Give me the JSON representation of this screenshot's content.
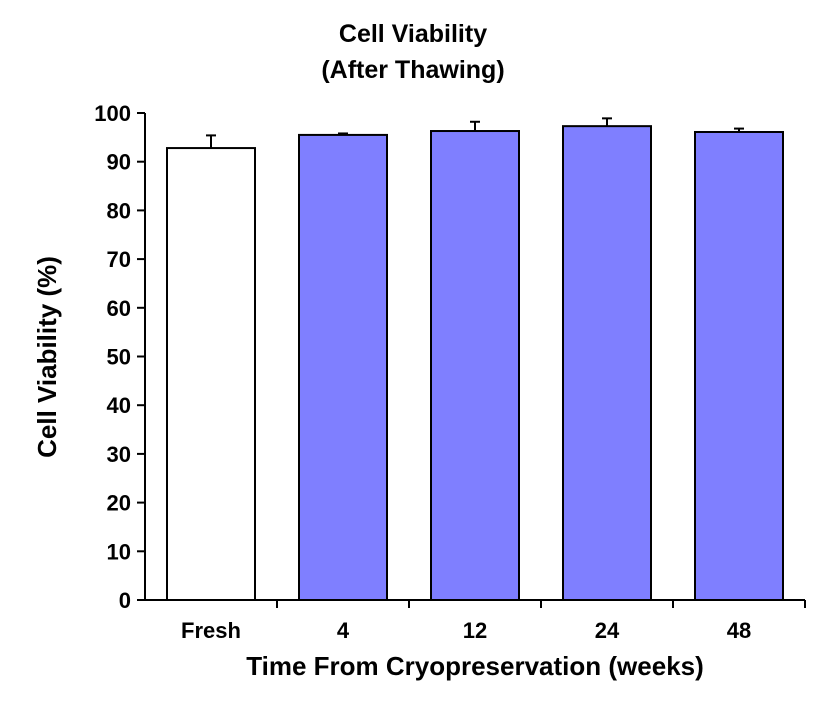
{
  "chart_data": {
    "type": "bar",
    "title_line1": "Cell Viability",
    "title_line2": "(After Thawing)",
    "xlabel": "Time From Cryopreservation (weeks)",
    "ylabel": "Cell Viability (%)",
    "categories": [
      "Fresh",
      "4",
      "12",
      "24",
      "48"
    ],
    "values": [
      92.8,
      95.5,
      96.3,
      97.3,
      96.1
    ],
    "error_bars": [
      2.6,
      0.3,
      1.9,
      1.6,
      0.7
    ],
    "ylim": [
      0,
      100
    ],
    "yticks": [
      "0",
      "10",
      "20",
      "30",
      "40",
      "50",
      "60",
      "70",
      "80",
      "90",
      "100"
    ],
    "grid": false,
    "legend": "none",
    "bar_colors": [
      "#ffffff",
      "#7f7fff",
      "#7f7fff",
      "#7f7fff",
      "#7f7fff"
    ],
    "bar_edge_color": "#000000"
  }
}
